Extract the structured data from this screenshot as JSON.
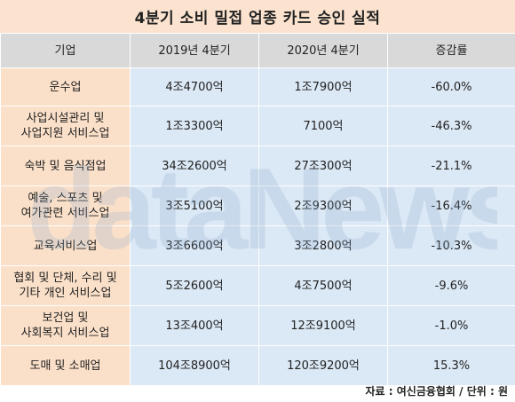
{
  "title": "4분기 소비 밀접 업종 카드 승인 실적",
  "header": [
    "기업",
    "2019년 4분기",
    "2020년 4분기",
    "증감률"
  ],
  "rows": [
    {
      "company": [
        "운수업"
      ],
      "q4_2019": "4조4700억",
      "q4_2020": "1조7900억",
      "change": "-60.0%"
    },
    {
      "company": [
        "사업시설관리 및",
        "사업지원 서비스업"
      ],
      "q4_2019": "1조3300억",
      "q4_2020": "7100억",
      "change": "-46.3%"
    },
    {
      "company": [
        "숙박 및 음식점업"
      ],
      "q4_2019": "34조2600억",
      "q4_2020": "27조300억",
      "change": "-21.1%"
    },
    {
      "company": [
        "예술, 스포츠 및",
        "여가관련 서비스업"
      ],
      "q4_2019": "3조5100억",
      "q4_2020": "2조9300억",
      "change": "-16.4%"
    },
    {
      "company": [
        "교육서비스업"
      ],
      "q4_2019": "3조6600억",
      "q4_2020": "3조2800억",
      "change": "-10.3%"
    },
    {
      "company": [
        "협회 및 단체, 수리 및",
        "기타 개인 서비스업"
      ],
      "q4_2019": "5조2600억",
      "q4_2020": "4조7500억",
      "change": "-9.6%"
    },
    {
      "company": [
        "보건업 및",
        "사회복지 서비스업"
      ],
      "q4_2019": "13조400억",
      "q4_2020": "12조9100억",
      "change": "-1.0%"
    },
    {
      "company": [
        "도매 및 소매업"
      ],
      "q4_2019": "104조8900억",
      "q4_2020": "120조9200억",
      "change": "15.3%"
    }
  ],
  "footer": "자료 : 여신금융협회 / 단위 : 원",
  "watermark": "dataNews",
  "colors": {
    "title_bg": "#fbe3cf",
    "header_bg": "#d9d9d9",
    "company_bg": "#fbe0c9",
    "value_bg": "#dbe8f5"
  }
}
